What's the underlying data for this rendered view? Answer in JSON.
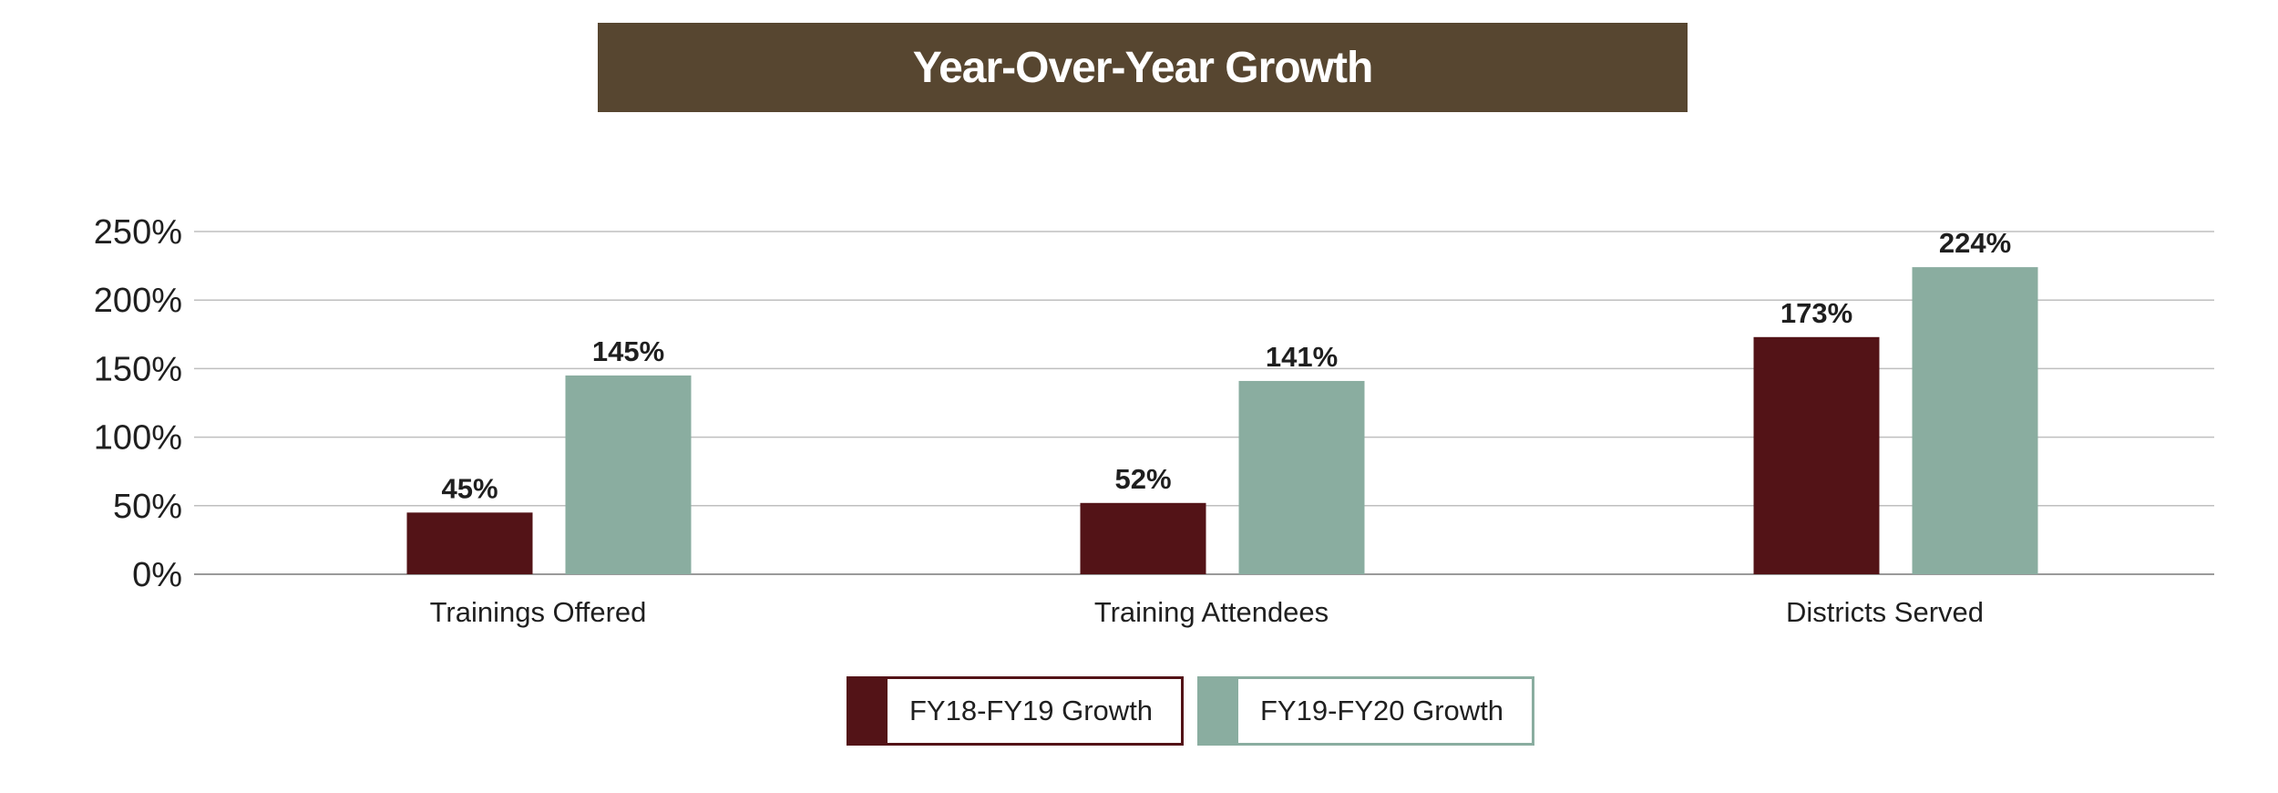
{
  "chart_data": {
    "type": "bar",
    "title": "Year-Over-Year Growth",
    "categories": [
      "Trainings Offered",
      "Training Attendees",
      "Districts Served"
    ],
    "series": [
      {
        "name": "FY18-FY19 Growth",
        "values": [
          45,
          52,
          173
        ],
        "labels": [
          "45%",
          "52%",
          "173%"
        ],
        "color": "#531317"
      },
      {
        "name": "FY19-FY20 Growth",
        "values": [
          145,
          141,
          224
        ],
        "labels": [
          "145%",
          "141%",
          "224%"
        ],
        "color": "#8aada0"
      }
    ],
    "ylim": [
      0,
      250
    ],
    "yticks": [
      "0%",
      "50%",
      "100%",
      "150%",
      "200%",
      "250%"
    ],
    "ytick_values": [
      0,
      50,
      100,
      150,
      200,
      250
    ],
    "xlabel": "",
    "ylabel": "",
    "grid": true,
    "legend_position": "bottom-center",
    "colors": {
      "banner": "#574630",
      "grid": "#bfbfbf"
    }
  }
}
